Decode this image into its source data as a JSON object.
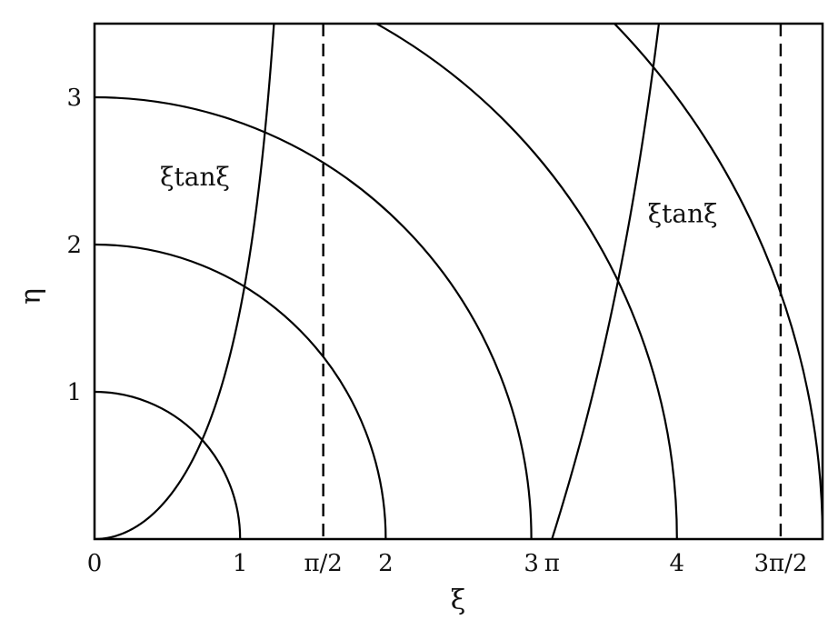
{
  "chart_data": {
    "type": "line",
    "title": "",
    "xlabel": "ξ",
    "ylabel": "η",
    "xlim": [
      0,
      5.0
    ],
    "ylim": [
      0,
      3.5
    ],
    "grid": false,
    "x_ticks": [
      {
        "value": 0,
        "label": "0"
      },
      {
        "value": 1,
        "label": "1"
      },
      {
        "value": 1.5708,
        "label": "π/2"
      },
      {
        "value": 2,
        "label": "2"
      },
      {
        "value": 3,
        "label": "3"
      },
      {
        "value": 3.1416,
        "label": "π"
      },
      {
        "value": 4,
        "label": "4"
      },
      {
        "value": 4.7124,
        "label": "3π/2"
      }
    ],
    "y_ticks": [
      {
        "value": 1,
        "label": "1"
      },
      {
        "value": 2,
        "label": "2"
      },
      {
        "value": 3,
        "label": "3"
      }
    ],
    "circles": [
      {
        "name": "circle-r1",
        "radius": 1
      },
      {
        "name": "circle-r2",
        "radius": 2
      },
      {
        "name": "circle-r3",
        "radius": 3
      },
      {
        "name": "circle-r4",
        "radius": 4
      },
      {
        "name": "circle-r5",
        "radius": 5
      }
    ],
    "curves": [
      {
        "name": "xi-tan-xi-branch-1",
        "function": "ξ·tan(ξ)",
        "x_range": [
          0,
          1.25
        ]
      },
      {
        "name": "xi-tan-xi-branch-2",
        "function": "ξ·tan(ξ)",
        "x_range": [
          3.1416,
          3.95
        ]
      }
    ],
    "asymptotes": [
      {
        "name": "asymptote-pi-over-2",
        "x": 1.5708
      },
      {
        "name": "asymptote-3pi-over-2",
        "x": 4.7124
      }
    ],
    "annotations": [
      {
        "name": "label-xi-tan-xi-left",
        "text": "ξtanξ",
        "x": 0.45,
        "y": 2.4
      },
      {
        "name": "label-xi-tan-xi-right",
        "text": "ξtanξ",
        "x": 3.8,
        "y": 2.15
      }
    ]
  }
}
